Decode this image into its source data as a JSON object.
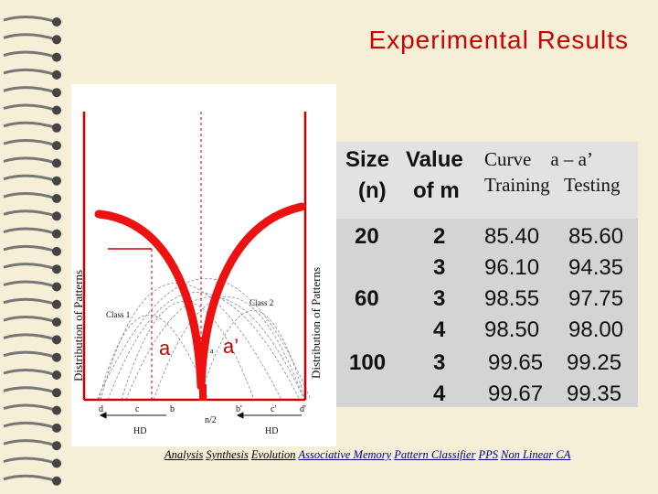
{
  "title": "Experimental  Results",
  "diagram": {
    "y_label": "Distribution  of Patterns",
    "class1": "Class 1",
    "class2": "Class 2",
    "label_a": "a",
    "label_a_prime": "a’",
    "label_a_small": "a",
    "x_ticks": [
      "d",
      "c",
      "b",
      "n/2",
      "b'",
      "c'",
      "d'"
    ],
    "hd_left": "HD",
    "hd_right": "HD",
    "accent": "#ee1111"
  },
  "table": {
    "headers": {
      "size": [
        "Size",
        "(n)"
      ],
      "value": [
        "Value",
        "of m"
      ],
      "curve": [
        "Curve    a – a’",
        "Training   Testing"
      ]
    },
    "sizes": [
      "20",
      "60",
      "100"
    ],
    "m_values": [
      "2",
      "3",
      "3",
      "4",
      "3",
      "4"
    ],
    "training": [
      "85.40",
      "96.10",
      "98.55",
      "98.50",
      "99.65",
      "99.67"
    ],
    "testing": [
      "85.60",
      "94.35",
      "97.75",
      "98.00",
      "99.25",
      "99.35"
    ]
  },
  "footer": [
    "Analysis",
    "Synthesis",
    "Evolution",
    "Associative Memory",
    "Pattern Classifier",
    "PPS",
    "Non Linear CA"
  ]
}
